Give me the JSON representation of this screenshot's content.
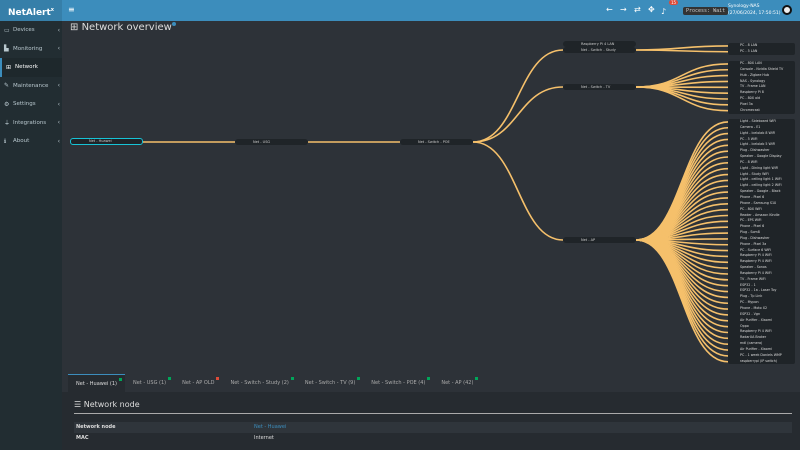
{
  "app": {
    "logo": "NetAlert",
    "logo_sup": "x",
    "menu_icon": "hamburger-icon",
    "notifications": "15",
    "process": "Process: Wait",
    "host_name": "Synology-NAS",
    "host_time": "(27/06/2024, 17:50:51)"
  },
  "sidebar": [
    {
      "label": "Devices",
      "icon": "laptop-icon"
    },
    {
      "label": "Monitoring",
      "icon": "chart-icon"
    },
    {
      "label": "Network",
      "icon": "network-icon",
      "active": true
    },
    {
      "label": "Maintenance",
      "icon": "wrench-icon"
    },
    {
      "label": "Settings",
      "icon": "gear-icon"
    },
    {
      "label": "Integrations",
      "icon": "plug-icon"
    },
    {
      "label": "About",
      "icon": "info-icon"
    }
  ],
  "page_title": "Network overview",
  "tree": {
    "root": "Net - Huawei",
    "usg": "Net - USG",
    "poe": "Net - Switch - POE",
    "study": [
      "Raspberry Pi 4 LAN",
      "Net - Switch - Study"
    ],
    "tv": "Net - Switch - TV",
    "ap": "Net - AP",
    "study_devices": [
      "PC - 8 LAN",
      "PC - 5 LAN"
    ],
    "tv_devices": [
      "PC - 80X LAN",
      "Console - Nvidia Shield TV",
      "Hub - Zigbee Hub",
      "NAS - Synology",
      "TV - Frame LAN",
      "Raspberry Pi 8",
      "PC - 80X old",
      "Pixel 3a",
      "Chromecast"
    ],
    "ap_devices": [
      "Light - Sideboard WiFi",
      "Camera - E1",
      "Light - Icelolab 8 WiFi",
      "PC - 5 WiFi",
      "Light - Icelolab 5 WiFi",
      "Plug - Dishwasher",
      "Speaker - Google Display",
      "PC - 8 WiFi",
      "Light - Dining light WiFi",
      "Light - Study WiFi",
      "Light - ceiling light 1 WiFi",
      "Light - ceiling light 2 WiFi",
      "Speaker - Google - Black",
      "Phone - Pixel 6",
      "Phone - Samsung S10",
      "PC - 80X WiFi",
      "Reader - Amazon Kindle",
      "PC - EPS WiFi",
      "Phone - Pixel 6",
      "Plug - Som8",
      "Plug - Dishwasher",
      "Phone - Pixel 3a",
      "PC - Surface 6 WiFi",
      "Raspberry Pi 4 WiFi",
      "Raspberry Pi 4 WiFi",
      "Speaker - Sonos",
      "Raspberry Pi 4 WiFi",
      "TV - Frame WiFi",
      "ESP32 - 1",
      "ESP32 - 1a - Laser Toy",
      "Plug - Tp Link",
      "PC - Mypon",
      "Phone - Moto X2",
      "ESP32 - Vgn",
      "Air Purifier - Xiaomi",
      "Oppo",
      "Raspberry Pi 4 WiFi",
      "RadarUA Broker",
      "mdl (camera)",
      "Air Purifier - Xiaomi",
      "PC - 1 week Daniels WMP",
      "raspberrypi (IP switch)"
    ]
  },
  "tabs": [
    {
      "label": "Net - Huawei (1)",
      "status": "#00a65a",
      "active": true
    },
    {
      "label": "Net - USG (1)",
      "status": "#00a65a"
    },
    {
      "label": "Net - AP OLD",
      "status": "#dd4b39"
    },
    {
      "label": "Net - Switch - Study (2)",
      "status": "#00a65a"
    },
    {
      "label": "Net - Switch - TV (9)",
      "status": "#00a65a"
    },
    {
      "label": "Net - Switch - POE (4)",
      "status": "#00a65a"
    },
    {
      "label": "Net - AP (42)",
      "status": "#00a65a"
    }
  ],
  "panel": {
    "title": "Network node",
    "rows": [
      {
        "label": "Network node",
        "value": "Net - Huawei",
        "link": true
      },
      {
        "label": "MAC",
        "value": "Internet"
      }
    ]
  },
  "colors": {
    "accent": "#3c8dbc",
    "link_line": "#f5c06b",
    "root_border": "#17c3d6"
  }
}
